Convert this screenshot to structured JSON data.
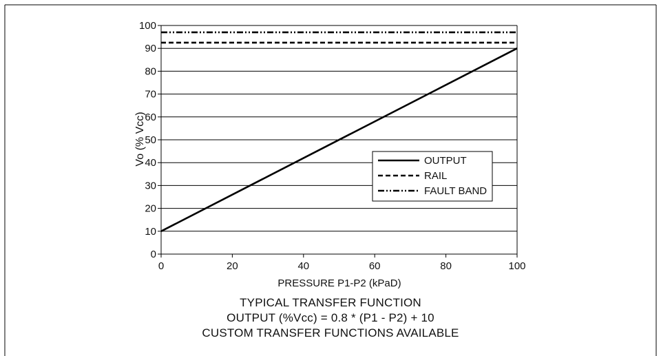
{
  "chart_data": {
    "type": "line",
    "xlabel": "PRESSURE P1-P2 (kPaD)",
    "ylabel": "Vo (% Vcc)",
    "xlim": [
      0,
      100
    ],
    "ylim": [
      0,
      100
    ],
    "x_ticks": [
      0,
      20,
      40,
      60,
      80,
      100
    ],
    "y_ticks": [
      0,
      10,
      20,
      30,
      40,
      50,
      60,
      70,
      80,
      90,
      100
    ],
    "grid": "horizontal",
    "legend_position": "lower-right",
    "series": [
      {
        "name": "OUTPUT",
        "style": "solid",
        "x": [
          0,
          100
        ],
        "y": [
          10,
          90
        ]
      },
      {
        "name": "RAIL",
        "style": "dashed",
        "x": [
          0,
          100
        ],
        "y": [
          92.5,
          92.5
        ]
      },
      {
        "name": "FAULT BAND",
        "style": "dash-dot-dot",
        "x": [
          0,
          100
        ],
        "y": [
          97,
          97
        ]
      }
    ]
  },
  "caption": {
    "line1": "TYPICAL TRANSFER FUNCTION",
    "line2": "OUTPUT (%Vcc) = 0.8 * (P1 - P2) + 10",
    "line3": "CUSTOM TRANSFER FUNCTIONS AVAILABLE"
  }
}
